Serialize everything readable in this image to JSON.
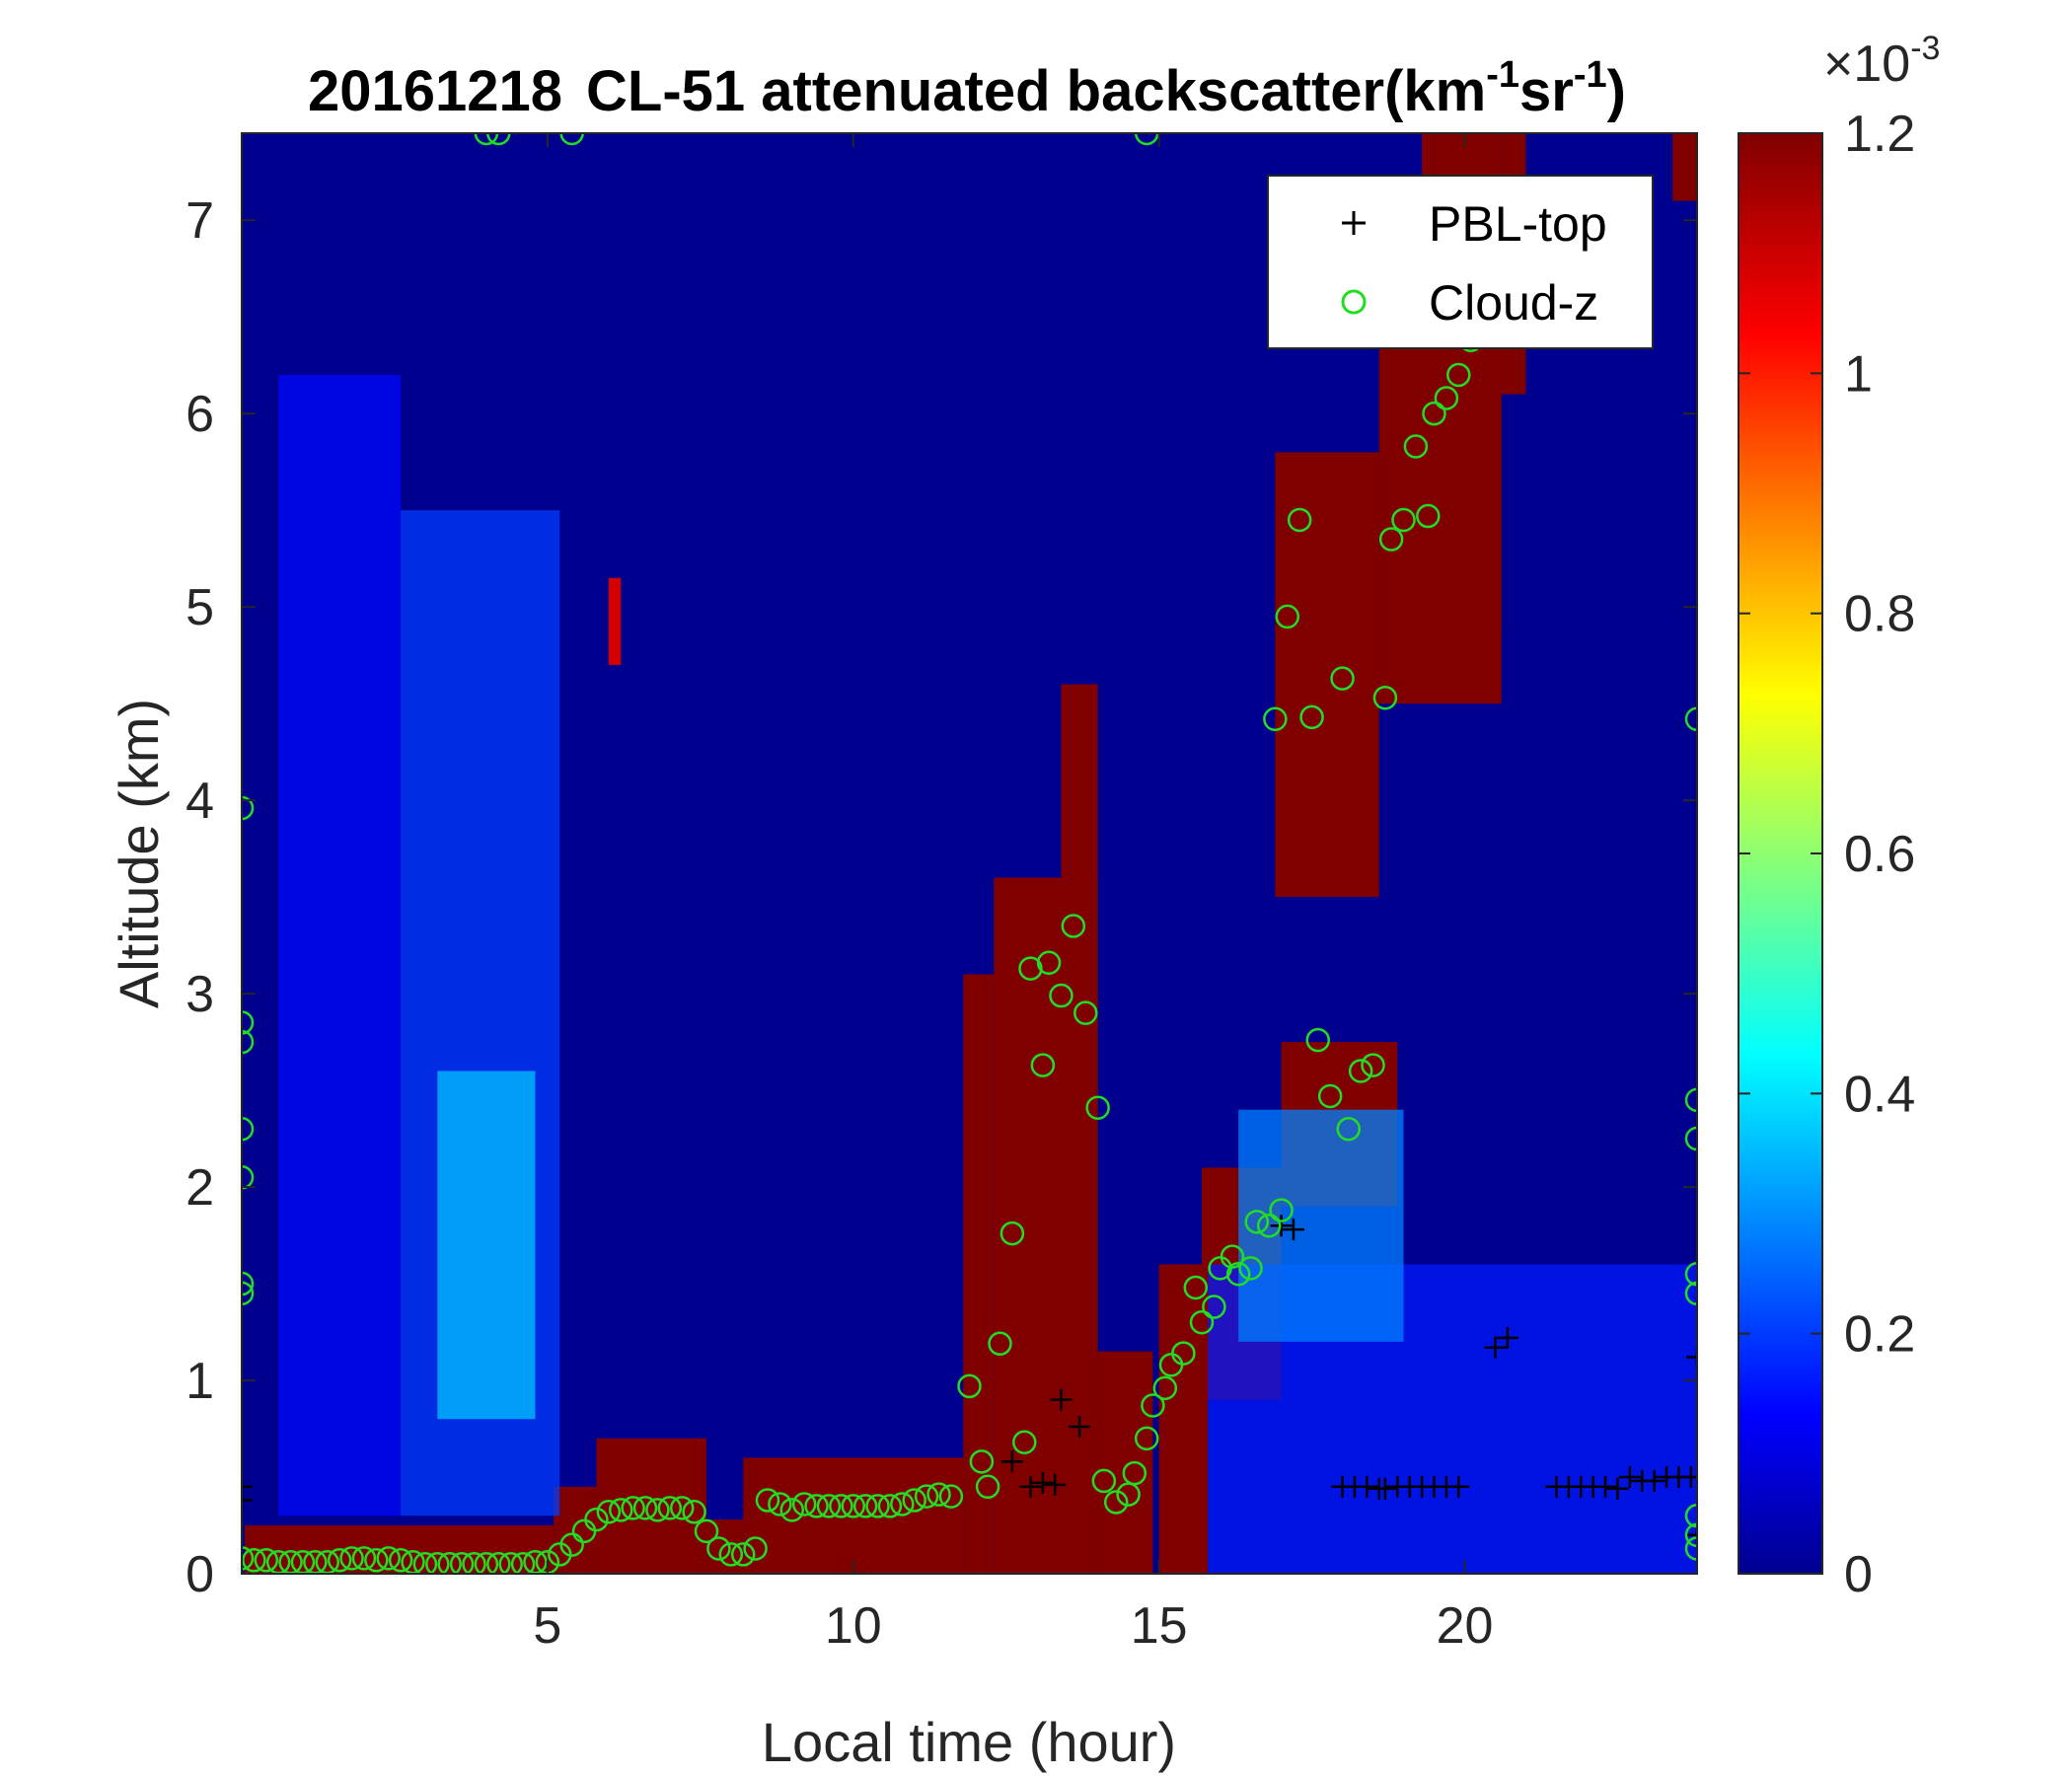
{
  "chart_data": {
    "type": "heatmap",
    "title": {
      "date": "20161218",
      "text": "CL-51 attenuated backscatter(km",
      "sup1": "-1",
      "mid": "sr",
      "sup2": "-1",
      "end": ")"
    },
    "xlabel": "Local time (hour)",
    "ylabel": "Altitude (km)",
    "xlim": [
      0,
      23.8
    ],
    "ylim": [
      0,
      7.45
    ],
    "xticks": [
      5,
      10,
      15,
      20
    ],
    "yticks": [
      0,
      1,
      2,
      3,
      4,
      5,
      6,
      7
    ],
    "colorbar": {
      "colormap": "jet",
      "range": [
        0,
        1.2
      ],
      "ticks": [
        "0",
        "0.2",
        "0.4",
        "0.6",
        "0.8",
        "1",
        "1.2"
      ],
      "exponent_prefix": "×10",
      "exponent": "-3"
    },
    "legend": {
      "placement": "top-right",
      "entries": [
        {
          "label": "PBL-top",
          "marker": "+",
          "color": "#000000"
        },
        {
          "label": "Cloud-z",
          "marker": "o",
          "color": "#22dd22"
        }
      ]
    },
    "background_regions": [
      {
        "x": [
          0.05,
          5.1
        ],
        "y": [
          0,
          0.25
        ],
        "value": 1.2
      },
      {
        "x": [
          5.1,
          5.8
        ],
        "y": [
          0,
          0.45
        ],
        "value": 1.2
      },
      {
        "x": [
          5.8,
          7.6
        ],
        "y": [
          0,
          0.7
        ],
        "value": 1.2
      },
      {
        "x": [
          7.6,
          8.2
        ],
        "y": [
          0,
          0.28
        ],
        "value": 1.2
      },
      {
        "x": [
          8.2,
          11.8
        ],
        "y": [
          0,
          0.6
        ],
        "value": 1.2
      },
      {
        "x": [
          11.8,
          12.3
        ],
        "y": [
          0,
          3.1
        ],
        "value": 1.2
      },
      {
        "x": [
          12.3,
          14.0
        ],
        "y": [
          0,
          3.6
        ],
        "value": 1.2
      },
      {
        "x": [
          13.4,
          14.0
        ],
        "y": [
          0,
          4.6
        ],
        "value": 1.2
      },
      {
        "x": [
          14.0,
          14.9
        ],
        "y": [
          0,
          1.15
        ],
        "value": 1.2
      },
      {
        "x": [
          15.0,
          15.8
        ],
        "y": [
          0,
          1.6
        ],
        "value": 1.2
      },
      {
        "x": [
          15.7,
          17.0
        ],
        "y": [
          0.9,
          2.1
        ],
        "value": 1.2
      },
      {
        "x": [
          17.0,
          18.9
        ],
        "y": [
          1.9,
          2.75
        ],
        "value": 1.2
      },
      {
        "x": [
          16.9,
          18.6
        ],
        "y": [
          3.5,
          5.8
        ],
        "value": 1.2
      },
      {
        "x": [
          18.6,
          20.6
        ],
        "y": [
          4.5,
          6.6
        ],
        "value": 1.2
      },
      {
        "x": [
          19.3,
          20.6
        ],
        "y": [
          4.9,
          7.45
        ],
        "value": 1.2
      },
      {
        "x": [
          20.6,
          21.0
        ],
        "y": [
          6.1,
          7.45
        ],
        "value": 1.2
      },
      {
        "x": [
          23.4,
          23.8
        ],
        "y": [
          7.1,
          7.45
        ],
        "value": 1.2
      },
      {
        "x": [
          6.0,
          6.2
        ],
        "y": [
          4.7,
          5.15
        ],
        "value": 1.1
      },
      {
        "x": [
          0.6,
          2.6
        ],
        "y": [
          0.3,
          6.2
        ],
        "value": 0.16
      },
      {
        "x": [
          2.6,
          5.2
        ],
        "y": [
          0.3,
          5.5
        ],
        "value": 0.22
      },
      {
        "x": [
          3.2,
          4.8
        ],
        "y": [
          0.8,
          2.6
        ],
        "value": 0.38
      },
      {
        "x": [
          15.8,
          23.8
        ],
        "y": [
          0,
          1.6
        ],
        "value": 0.18
      },
      {
        "x": [
          16.3,
          19.0
        ],
        "y": [
          1.2,
          2.4
        ],
        "value": 0.3
      }
    ],
    "series": [
      {
        "name": "PBL-top",
        "marker": "+",
        "points": [
          [
            12.6,
            0.58
          ],
          [
            12.9,
            0.45
          ],
          [
            13.1,
            0.47
          ],
          [
            13.3,
            0.46
          ],
          [
            13.4,
            0.9
          ],
          [
            13.7,
            0.76
          ],
          [
            17.0,
            1.8
          ],
          [
            17.2,
            1.78
          ],
          [
            18.0,
            0.45
          ],
          [
            18.2,
            0.45
          ],
          [
            18.4,
            0.45
          ],
          [
            18.6,
            0.44
          ],
          [
            18.7,
            0.44
          ],
          [
            18.9,
            0.45
          ],
          [
            19.1,
            0.45
          ],
          [
            19.3,
            0.45
          ],
          [
            19.5,
            0.45
          ],
          [
            19.7,
            0.45
          ],
          [
            19.9,
            0.45
          ],
          [
            20.5,
            1.17
          ],
          [
            20.7,
            1.22
          ],
          [
            21.5,
            0.45
          ],
          [
            21.7,
            0.45
          ],
          [
            21.9,
            0.45
          ],
          [
            22.1,
            0.45
          ],
          [
            22.3,
            0.45
          ],
          [
            22.5,
            0.44
          ],
          [
            22.7,
            0.5
          ],
          [
            22.9,
            0.48
          ],
          [
            23.1,
            0.48
          ],
          [
            23.3,
            0.5
          ],
          [
            23.5,
            0.5
          ],
          [
            23.7,
            0.5
          ],
          [
            0.0,
            0.45
          ],
          [
            0.0,
            0.38
          ],
          [
            23.8,
            1.12
          ],
          [
            23.8,
            0.2
          ]
        ]
      },
      {
        "name": "Cloud-z",
        "marker": "o",
        "points": [
          [
            0.0,
            0.08
          ],
          [
            0.2,
            0.07
          ],
          [
            0.4,
            0.07
          ],
          [
            0.6,
            0.06
          ],
          [
            0.8,
            0.06
          ],
          [
            1.0,
            0.06
          ],
          [
            1.2,
            0.06
          ],
          [
            1.4,
            0.06
          ],
          [
            1.6,
            0.07
          ],
          [
            1.8,
            0.08
          ],
          [
            2.0,
            0.08
          ],
          [
            2.2,
            0.07
          ],
          [
            2.4,
            0.08
          ],
          [
            2.6,
            0.07
          ],
          [
            2.8,
            0.06
          ],
          [
            3.0,
            0.05
          ],
          [
            3.2,
            0.05
          ],
          [
            3.4,
            0.05
          ],
          [
            3.6,
            0.05
          ],
          [
            3.8,
            0.05
          ],
          [
            4.0,
            0.05
          ],
          [
            4.2,
            0.05
          ],
          [
            4.4,
            0.05
          ],
          [
            4.6,
            0.05
          ],
          [
            4.8,
            0.06
          ],
          [
            5.0,
            0.06
          ],
          [
            5.2,
            0.1
          ],
          [
            5.4,
            0.15
          ],
          [
            5.6,
            0.22
          ],
          [
            5.8,
            0.28
          ],
          [
            6.0,
            0.32
          ],
          [
            6.2,
            0.33
          ],
          [
            6.4,
            0.34
          ],
          [
            6.6,
            0.34
          ],
          [
            6.8,
            0.33
          ],
          [
            7.0,
            0.34
          ],
          [
            7.2,
            0.34
          ],
          [
            7.4,
            0.32
          ],
          [
            7.6,
            0.22
          ],
          [
            7.8,
            0.13
          ],
          [
            8.0,
            0.1
          ],
          [
            8.2,
            0.1
          ],
          [
            8.4,
            0.13
          ],
          [
            8.6,
            0.38
          ],
          [
            8.8,
            0.36
          ],
          [
            9.0,
            0.33
          ],
          [
            9.2,
            0.36
          ],
          [
            9.4,
            0.35
          ],
          [
            9.6,
            0.35
          ],
          [
            9.8,
            0.35
          ],
          [
            10.0,
            0.35
          ],
          [
            10.2,
            0.35
          ],
          [
            10.4,
            0.35
          ],
          [
            10.6,
            0.35
          ],
          [
            10.8,
            0.36
          ],
          [
            11.0,
            0.38
          ],
          [
            11.2,
            0.4
          ],
          [
            11.4,
            0.41
          ],
          [
            11.6,
            0.4
          ],
          [
            11.9,
            0.97
          ],
          [
            12.1,
            0.58
          ],
          [
            12.2,
            0.45
          ],
          [
            12.4,
            1.19
          ],
          [
            12.6,
            1.76
          ],
          [
            12.8,
            0.68
          ],
          [
            12.9,
            3.13
          ],
          [
            13.1,
            2.63
          ],
          [
            13.2,
            3.16
          ],
          [
            13.4,
            2.99
          ],
          [
            13.6,
            3.35
          ],
          [
            13.8,
            2.9
          ],
          [
            14.0,
            2.41
          ],
          [
            14.1,
            0.48
          ],
          [
            14.3,
            0.37
          ],
          [
            14.5,
            0.41
          ],
          [
            14.6,
            0.52
          ],
          [
            14.8,
            0.7
          ],
          [
            14.9,
            0.87
          ],
          [
            15.1,
            0.96
          ],
          [
            15.2,
            1.08
          ],
          [
            15.4,
            1.14
          ],
          [
            15.6,
            1.48
          ],
          [
            15.7,
            1.3
          ],
          [
            15.9,
            1.38
          ],
          [
            16.0,
            1.58
          ],
          [
            16.2,
            1.64
          ],
          [
            16.3,
            1.55
          ],
          [
            16.5,
            1.58
          ],
          [
            16.6,
            1.82
          ],
          [
            16.8,
            1.8
          ],
          [
            17.0,
            1.88
          ],
          [
            16.9,
            4.42
          ],
          [
            17.1,
            4.95
          ],
          [
            17.3,
            5.45
          ],
          [
            17.5,
            4.43
          ],
          [
            17.6,
            2.76
          ],
          [
            17.8,
            2.47
          ],
          [
            18.0,
            4.63
          ],
          [
            18.1,
            2.3
          ],
          [
            18.3,
            2.6
          ],
          [
            18.5,
            2.63
          ],
          [
            18.7,
            4.53
          ],
          [
            18.8,
            5.35
          ],
          [
            19.0,
            5.45
          ],
          [
            19.2,
            5.83
          ],
          [
            19.4,
            5.47
          ],
          [
            19.5,
            6.0
          ],
          [
            19.7,
            6.08
          ],
          [
            19.9,
            6.2
          ],
          [
            20.1,
            6.38
          ],
          [
            20.3,
            6.41
          ],
          [
            0.0,
            3.96
          ],
          [
            0.0,
            2.85
          ],
          [
            0.0,
            2.75
          ],
          [
            0.0,
            2.3
          ],
          [
            0.0,
            2.05
          ],
          [
            0.0,
            1.5
          ],
          [
            0.0,
            1.45
          ],
          [
            23.8,
            4.42
          ],
          [
            23.8,
            2.45
          ],
          [
            23.8,
            2.25
          ],
          [
            23.8,
            1.55
          ],
          [
            23.8,
            1.45
          ],
          [
            23.8,
            0.3
          ],
          [
            23.8,
            0.2
          ],
          [
            23.8,
            0.13
          ],
          [
            4.0,
            7.45
          ],
          [
            4.2,
            7.45
          ],
          [
            5.4,
            7.45
          ],
          [
            14.8,
            7.45
          ]
        ]
      }
    ]
  }
}
